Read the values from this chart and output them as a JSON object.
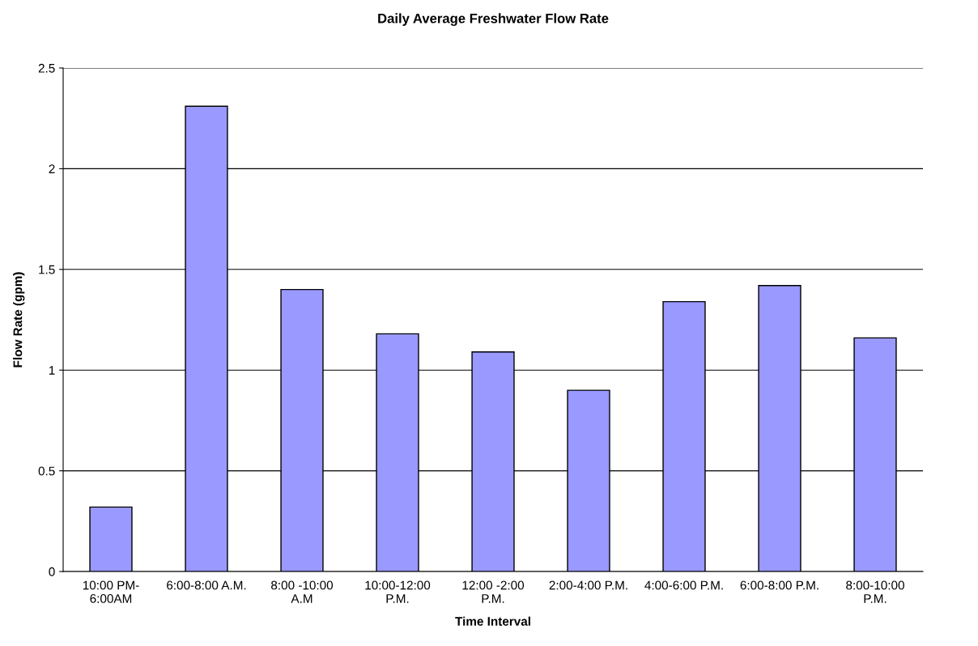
{
  "chart_data": {
    "type": "bar",
    "title": "Daily Average Freshwater Flow Rate",
    "xlabel": "Time Interval",
    "ylabel": "Flow Rate (gpm)",
    "categories": [
      "10:00 PM-\n6:00AM",
      "6:00-8:00 A.M.",
      "8:00 -10:00\nA.M",
      "10:00-12:00\nP.M.",
      "12:00 -2:00\nP.M.",
      "2:00-4:00 P.M.",
      "4:00-6:00 P.M.",
      "6:00-8:00 P.M.",
      "8:00-10:00\nP.M."
    ],
    "values": [
      0.32,
      2.31,
      1.4,
      1.18,
      1.09,
      0.9,
      1.34,
      1.42,
      1.16
    ],
    "color": "#9999ff",
    "ylim": [
      0,
      2.5
    ],
    "yticks": [
      0,
      0.5,
      1,
      1.5,
      2,
      2.5
    ],
    "grid": "y"
  }
}
